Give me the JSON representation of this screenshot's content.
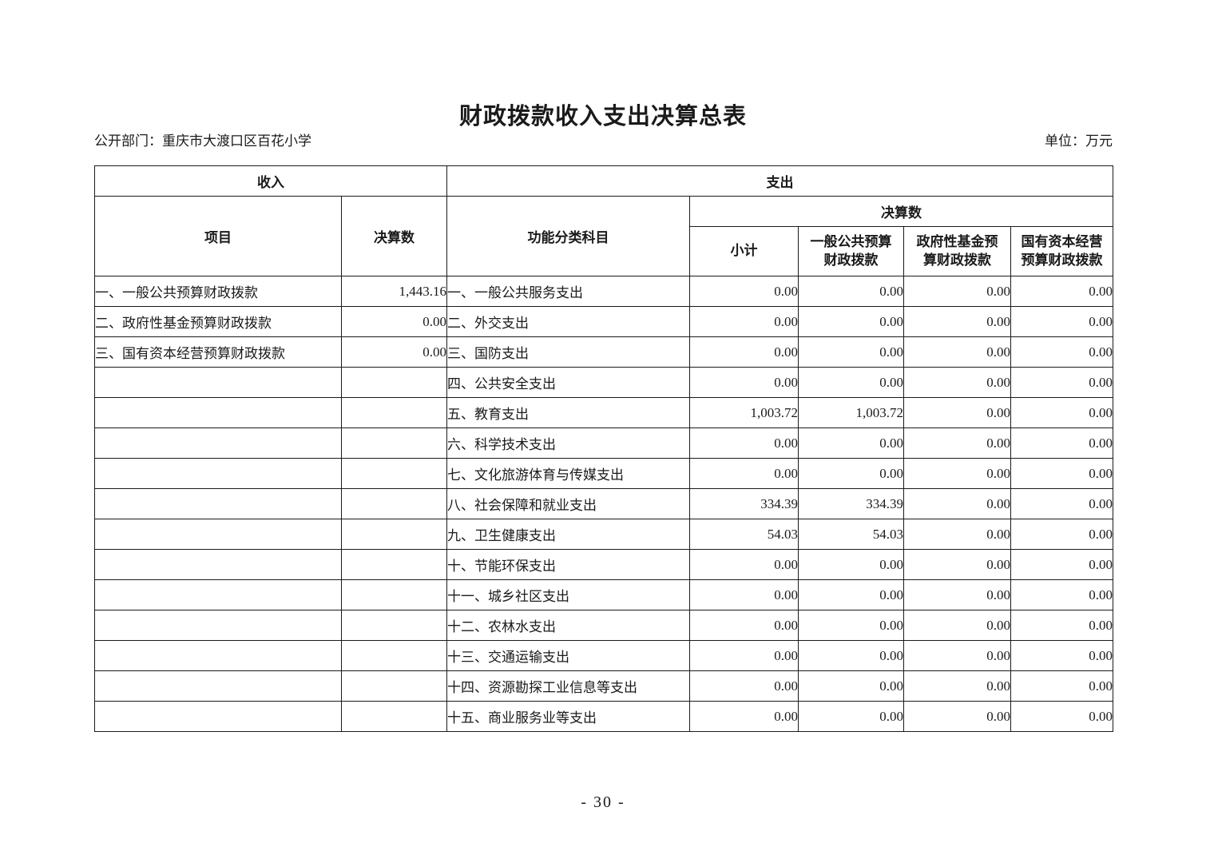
{
  "page": {
    "title": "财政拨款收入支出决算总表",
    "department": "公开部门：重庆市大渡口区百花小学",
    "unit": "单位：万元",
    "page_number": "- 30 -"
  },
  "table": {
    "headers": {
      "income": "收入",
      "expense": "支出",
      "item": "项目",
      "income_final_amount": "决算数",
      "functional_subject": "功能分类科目",
      "expense_final_amount": "决算数",
      "subtotal": "小计",
      "general_budget": "一般公共预算\n财政拨款",
      "gov_fund": "政府性基金预\n算财政拨款",
      "state_capital": "国有资本经营\n预算财政拨款"
    },
    "rows": [
      {
        "income_item": "一、一般公共预算财政拨款",
        "income_value": "1,443.16",
        "expense_item": "一、一般公共服务支出",
        "subtotal": "0.00",
        "general_budget": "0.00",
        "gov_fund": "0.00",
        "state_capital": "0.00"
      },
      {
        "income_item": "二、政府性基金预算财政拨款",
        "income_value": "0.00",
        "expense_item": "二、外交支出",
        "subtotal": "0.00",
        "general_budget": "0.00",
        "gov_fund": "0.00",
        "state_capital": "0.00"
      },
      {
        "income_item": "三、国有资本经营预算财政拨款",
        "income_value": "0.00",
        "expense_item": "三、国防支出",
        "subtotal": "0.00",
        "general_budget": "0.00",
        "gov_fund": "0.00",
        "state_capital": "0.00"
      },
      {
        "income_item": "",
        "income_value": "",
        "expense_item": "四、公共安全支出",
        "subtotal": "0.00",
        "general_budget": "0.00",
        "gov_fund": "0.00",
        "state_capital": "0.00"
      },
      {
        "income_item": "",
        "income_value": "",
        "expense_item": "五、教育支出",
        "subtotal": "1,003.72",
        "general_budget": "1,003.72",
        "gov_fund": "0.00",
        "state_capital": "0.00"
      },
      {
        "income_item": "",
        "income_value": "",
        "expense_item": "六、科学技术支出",
        "subtotal": "0.00",
        "general_budget": "0.00",
        "gov_fund": "0.00",
        "state_capital": "0.00"
      },
      {
        "income_item": "",
        "income_value": "",
        "expense_item": "七、文化旅游体育与传媒支出",
        "subtotal": "0.00",
        "general_budget": "0.00",
        "gov_fund": "0.00",
        "state_capital": "0.00"
      },
      {
        "income_item": "",
        "income_value": "",
        "expense_item": "八、社会保障和就业支出",
        "subtotal": "334.39",
        "general_budget": "334.39",
        "gov_fund": "0.00",
        "state_capital": "0.00"
      },
      {
        "income_item": "",
        "income_value": "",
        "expense_item": "九、卫生健康支出",
        "subtotal": "54.03",
        "general_budget": "54.03",
        "gov_fund": "0.00",
        "state_capital": "0.00"
      },
      {
        "income_item": "",
        "income_value": "",
        "expense_item": "十、节能环保支出",
        "subtotal": "0.00",
        "general_budget": "0.00",
        "gov_fund": "0.00",
        "state_capital": "0.00"
      },
      {
        "income_item": "",
        "income_value": "",
        "expense_item": "十一、城乡社区支出",
        "subtotal": "0.00",
        "general_budget": "0.00",
        "gov_fund": "0.00",
        "state_capital": "0.00"
      },
      {
        "income_item": "",
        "income_value": "",
        "expense_item": "十二、农林水支出",
        "subtotal": "0.00",
        "general_budget": "0.00",
        "gov_fund": "0.00",
        "state_capital": "0.00"
      },
      {
        "income_item": "",
        "income_value": "",
        "expense_item": "十三、交通运输支出",
        "subtotal": "0.00",
        "general_budget": "0.00",
        "gov_fund": "0.00",
        "state_capital": "0.00"
      },
      {
        "income_item": "",
        "income_value": "",
        "expense_item": "十四、资源勘探工业信息等支出",
        "subtotal": "0.00",
        "general_budget": "0.00",
        "gov_fund": "0.00",
        "state_capital": "0.00"
      },
      {
        "income_item": "",
        "income_value": "",
        "expense_item": "十五、商业服务业等支出",
        "subtotal": "0.00",
        "general_budget": "0.00",
        "gov_fund": "0.00",
        "state_capital": "0.00"
      }
    ]
  }
}
